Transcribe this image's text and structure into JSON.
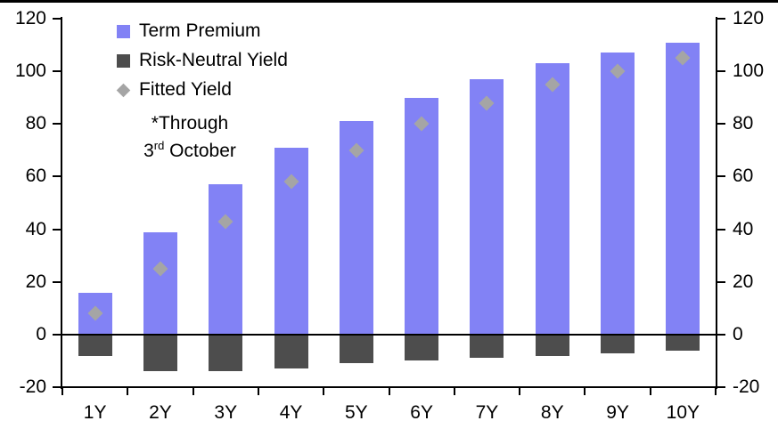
{
  "annotation": {
    "line1": "*Through",
    "line2_num": "3",
    "line2_sup": "rd",
    "line2_rest": " October"
  },
  "colors": {
    "term_premium": "#8282f5",
    "risk_neutral": "#4d4d4d",
    "fitted": "#a5a5a5",
    "axis": "#000000",
    "background": "#ffffff"
  },
  "chart_data": {
    "type": "bar",
    "title": "",
    "xlabel": "",
    "ylabel": "",
    "categories": [
      "1Y",
      "2Y",
      "3Y",
      "4Y",
      "5Y",
      "6Y",
      "7Y",
      "8Y",
      "9Y",
      "10Y"
    ],
    "series": [
      {
        "name": "Term Premium",
        "type": "bar",
        "color": "#8282f5",
        "values": [
          16,
          39,
          57,
          71,
          81,
          90,
          97,
          103,
          107,
          111
        ]
      },
      {
        "name": "Risk-Neutral Yield",
        "type": "bar",
        "color": "#4d4d4d",
        "values": [
          -8,
          -14,
          -14,
          -13,
          -11,
          -10,
          -9,
          -8,
          -7,
          -6
        ]
      },
      {
        "name": "Fitted Yield",
        "type": "scatter",
        "marker": "diamond",
        "color": "#a5a5a5",
        "values": [
          8,
          25,
          43,
          58,
          70,
          80,
          88,
          95,
          100,
          105
        ]
      }
    ],
    "y_axis": {
      "min": -20,
      "max": 120,
      "tick_step": 20,
      "ticks": [
        120,
        100,
        80,
        60,
        40,
        20,
        0,
        -20
      ],
      "mirrored_right": true
    },
    "grid": false,
    "zero_line": true,
    "legend_position": "top-left"
  }
}
